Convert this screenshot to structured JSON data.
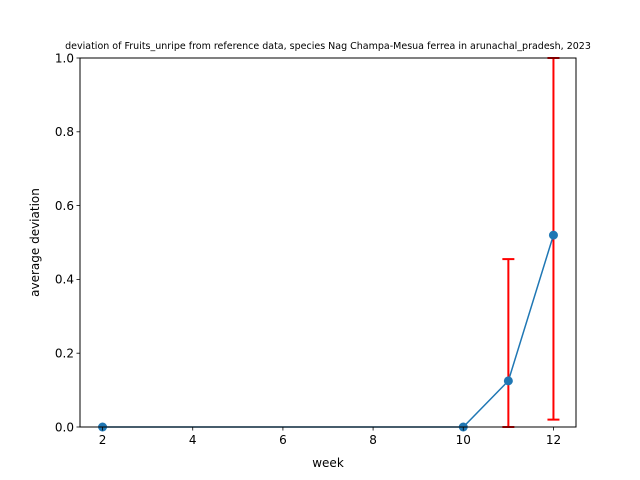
{
  "chart_data": {
    "type": "line",
    "title": "deviation of Fruits_unripe from reference data, species Nag Champa-Mesua ferrea in arunachal_pradesh, 2023",
    "xlabel": "week",
    "ylabel": "average deviation",
    "xlim": [
      1.5,
      12.5
    ],
    "ylim": [
      0,
      1.0
    ],
    "xticks": [
      2,
      4,
      6,
      8,
      10,
      12
    ],
    "yticks": [
      0.0,
      0.2,
      0.4,
      0.6,
      0.8,
      1.0
    ],
    "ytick_labels": [
      "0.0",
      "0.2",
      "0.4",
      "0.6",
      "0.8",
      "1.0"
    ],
    "grid": false,
    "series": [
      {
        "x": [
          2,
          10,
          11,
          12
        ],
        "y": [
          0.0,
          0.0,
          0.125,
          0.52
        ],
        "error_low": [
          0.0,
          0.0,
          0.0,
          0.02
        ],
        "error_high": [
          0.0,
          0.0,
          0.455,
          1.0
        ],
        "color": "#1f77b4",
        "error_color": "#ff0000"
      }
    ]
  }
}
